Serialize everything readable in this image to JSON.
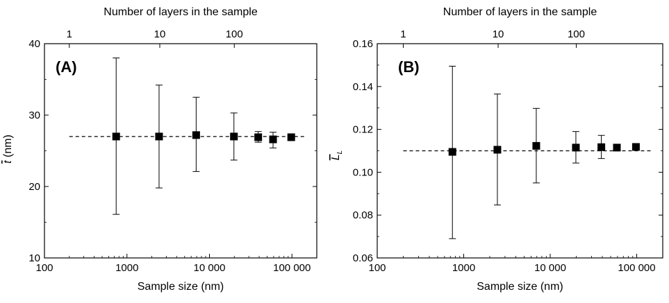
{
  "chart_data": [
    {
      "type": "scatter",
      "panel_label": "(A)",
      "xlabel": "Sample size (nm)",
      "x2label": "Number of layers in the sample",
      "ylabel": "t (nm)",
      "ylabel_symbol": "t",
      "ylabel_unit": " (nm)",
      "xscale": "log",
      "xlim": [
        100,
        200000
      ],
      "ylim": [
        10,
        40
      ],
      "xticks": [
        {
          "value": 100,
          "label": "100"
        },
        {
          "value": 1000,
          "label": "1000"
        },
        {
          "value": 10000,
          "label": "10 000"
        },
        {
          "value": 100000,
          "label": "100 000"
        }
      ],
      "x2ticks": [
        {
          "value": 200,
          "label": "1"
        },
        {
          "value": 2500,
          "label": "10"
        },
        {
          "value": 20000,
          "label": "100"
        }
      ],
      "yticks": [
        {
          "value": 10,
          "label": "10"
        },
        {
          "value": 20,
          "label": "20"
        },
        {
          "value": 30,
          "label": "30"
        },
        {
          "value": 40,
          "label": "40"
        }
      ],
      "points": [
        {
          "x": 740,
          "y": 27.0,
          "lo": 16.1,
          "hi": 38.0
        },
        {
          "x": 2450,
          "y": 27.0,
          "lo": 19.8,
          "hi": 34.2
        },
        {
          "x": 6900,
          "y": 27.2,
          "lo": 22.1,
          "hi": 32.5
        },
        {
          "x": 19800,
          "y": 27.0,
          "lo": 23.7,
          "hi": 30.3
        },
        {
          "x": 39000,
          "y": 26.9,
          "lo": 26.2,
          "hi": 27.7
        },
        {
          "x": 59000,
          "y": 26.6,
          "lo": 25.4,
          "hi": 27.6
        },
        {
          "x": 98000,
          "y": 26.9,
          "lo": 26.9,
          "hi": 26.9
        }
      ],
      "reference_line": {
        "y": 27.0,
        "x_from": 200,
        "x_to": 150000,
        "style": "dashed"
      },
      "grid": false
    },
    {
      "type": "scatter",
      "panel_label": "(B)",
      "xlabel": "Sample size (nm)",
      "x2label": "Number of layers in the sample",
      "ylabel": "L_L",
      "ylabel_symbol": "L",
      "ylabel_sub": "L",
      "xscale": "log",
      "xlim": [
        100,
        200000
      ],
      "ylim": [
        0.06,
        0.16
      ],
      "xticks": [
        {
          "value": 100,
          "label": "100"
        },
        {
          "value": 1000,
          "label": "1000"
        },
        {
          "value": 10000,
          "label": "10 000"
        },
        {
          "value": 100000,
          "label": "100 000"
        }
      ],
      "x2ticks": [
        {
          "value": 200,
          "label": "1"
        },
        {
          "value": 2500,
          "label": "10"
        },
        {
          "value": 20000,
          "label": "100"
        }
      ],
      "yticks": [
        {
          "value": 0.06,
          "label": "0.06"
        },
        {
          "value": 0.08,
          "label": "0.08"
        },
        {
          "value": 0.1,
          "label": "0.10"
        },
        {
          "value": 0.12,
          "label": "0.12"
        },
        {
          "value": 0.14,
          "label": "0.14"
        },
        {
          "value": 0.16,
          "label": "0.16"
        }
      ],
      "points": [
        {
          "x": 740,
          "y": 0.1095,
          "lo": 0.069,
          "hi": 0.1495
        },
        {
          "x": 2450,
          "y": 0.1105,
          "lo": 0.0847,
          "hi": 0.1365
        },
        {
          "x": 6900,
          "y": 0.1123,
          "lo": 0.095,
          "hi": 0.1298
        },
        {
          "x": 19800,
          "y": 0.1115,
          "lo": 0.1043,
          "hi": 0.119
        },
        {
          "x": 39000,
          "y": 0.1117,
          "lo": 0.1064,
          "hi": 0.1172
        },
        {
          "x": 59000,
          "y": 0.1115,
          "lo": 0.1115,
          "hi": 0.1115
        },
        {
          "x": 98000,
          "y": 0.1118,
          "lo": 0.1118,
          "hi": 0.1118
        }
      ],
      "reference_line": {
        "y": 0.11,
        "x_from": 200,
        "x_to": 150000,
        "style": "dashed"
      },
      "grid": false
    }
  ],
  "colors": {
    "marker": "#000000",
    "axis": "#000000",
    "background": "#ffffff"
  }
}
